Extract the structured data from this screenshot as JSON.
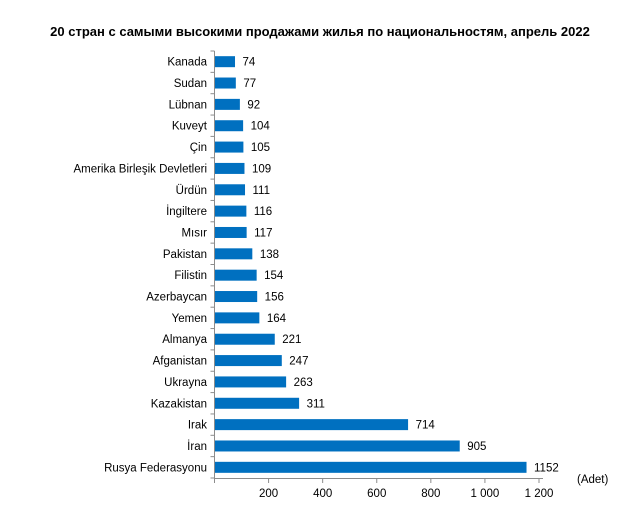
{
  "chart_data": {
    "type": "bar",
    "orientation": "horizontal",
    "title": "20 стран с самыми высокими продажами жилья по национальностям, апрель 2022",
    "unit": "(Adet)",
    "categories": [
      "Kanada",
      "Sudan",
      "Lübnan",
      "Kuveyt",
      "Çin",
      "Amerika Birleşik Devletleri",
      "Ürdün",
      "İngiltere",
      "Mısır",
      "Pakistan",
      "Filistin",
      "Azerbaycan",
      "Yemen",
      "Almanya",
      "Afganistan",
      "Ukrayna",
      "Kazakistan",
      "Irak",
      "İran",
      "Rusya Federasyonu"
    ],
    "values": [
      74,
      77,
      92,
      104,
      105,
      109,
      111,
      116,
      117,
      138,
      154,
      156,
      164,
      221,
      247,
      263,
      311,
      714,
      905,
      1152
    ],
    "value_labels": [
      "74",
      "77",
      "92",
      "104",
      "105",
      "109",
      "111",
      "116",
      "117",
      "138",
      "154",
      "156",
      "164",
      "221",
      "247",
      "263",
      "311",
      "714",
      "905",
      "1152"
    ],
    "xlim": [
      0,
      1200
    ],
    "xticks": [
      200,
      400,
      600,
      800,
      1000,
      1200
    ],
    "xtick_labels": [
      "200",
      "400",
      "600",
      "800",
      "1 000",
      "1 200"
    ],
    "bar_color": "#0070C0",
    "grid": false,
    "legend": "none"
  }
}
